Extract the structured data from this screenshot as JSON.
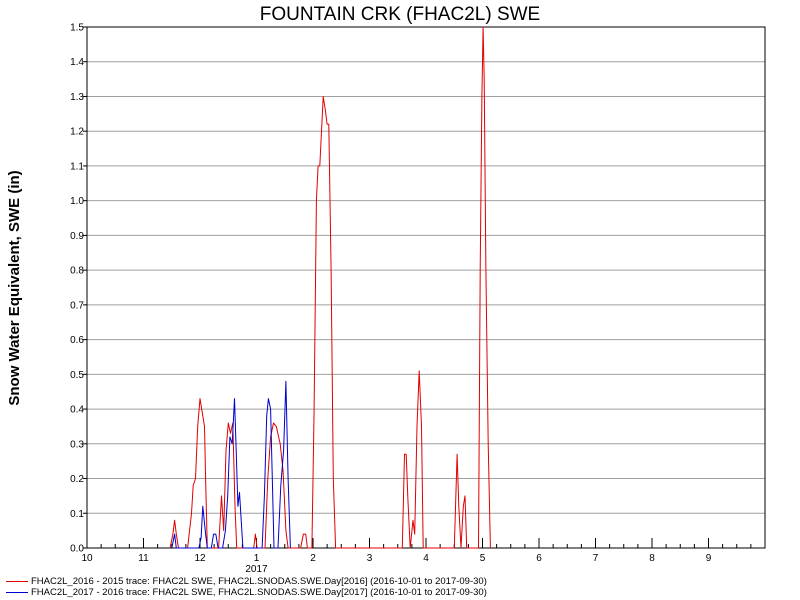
{
  "chart_data": {
    "type": "line",
    "title": "FOUNTAIN CRK (FHAC2L) SWE",
    "xlabel": "",
    "ylabel": "Snow Water Equivalent, SWE (in)",
    "ylim": [
      0,
      1.5
    ],
    "yticks": [
      "0.0",
      "0.1",
      "0.2",
      "0.3",
      "0.4",
      "0.5",
      "0.6",
      "0.7",
      "0.8",
      "0.9",
      "1.0",
      "1.1",
      "1.2",
      "1.3",
      "1.4",
      "1.5"
    ],
    "xlim": [
      10,
      22
    ],
    "xticks": [
      {
        "x": 10,
        "label": "10"
      },
      {
        "x": 11,
        "label": "11"
      },
      {
        "x": 12,
        "label": "12"
      },
      {
        "x": 13,
        "label": "1"
      },
      {
        "x": 14,
        "label": "2"
      },
      {
        "x": 15,
        "label": "3"
      },
      {
        "x": 16,
        "label": "4"
      },
      {
        "x": 17,
        "label": "5"
      },
      {
        "x": 18,
        "label": "6"
      },
      {
        "x": 19,
        "label": "7"
      },
      {
        "x": 20,
        "label": "8"
      },
      {
        "x": 21,
        "label": "9"
      }
    ],
    "year_label": {
      "x": 13,
      "label": "2017"
    },
    "grid": true,
    "series": [
      {
        "name": "FHAC2L_2016 - 2015 trace: FHAC2L SWE, FHAC2L.SNODAS.SWE.Day[2016] (2016-10-01 to 2017-09-30)",
        "color": "#e00000",
        "points": [
          [
            11.47,
            0
          ],
          [
            11.52,
            0.04
          ],
          [
            11.55,
            0.08
          ],
          [
            11.58,
            0.04
          ],
          [
            11.62,
            0
          ],
          [
            11.78,
            0
          ],
          [
            11.85,
            0.1
          ],
          [
            11.88,
            0.18
          ],
          [
            11.92,
            0.2
          ],
          [
            11.96,
            0.35
          ],
          [
            12.0,
            0.43
          ],
          [
            12.05,
            0.38
          ],
          [
            12.08,
            0.35
          ],
          [
            12.1,
            0.2
          ],
          [
            12.13,
            0
          ],
          [
            12.33,
            0
          ],
          [
            12.38,
            0.15
          ],
          [
            12.42,
            0.05
          ],
          [
            12.46,
            0.28
          ],
          [
            12.5,
            0.36
          ],
          [
            12.54,
            0.33
          ],
          [
            12.58,
            0.36
          ],
          [
            12.62,
            0.12
          ],
          [
            12.65,
            0
          ],
          [
            12.95,
            0
          ],
          [
            12.98,
            0.04
          ],
          [
            13.01,
            0
          ],
          [
            13.15,
            0
          ],
          [
            13.2,
            0.2
          ],
          [
            13.25,
            0.32
          ],
          [
            13.3,
            0.36
          ],
          [
            13.35,
            0.35
          ],
          [
            13.42,
            0.3
          ],
          [
            13.47,
            0.22
          ],
          [
            13.52,
            0.05
          ],
          [
            13.56,
            0
          ],
          [
            13.78,
            0
          ],
          [
            13.83,
            0.04
          ],
          [
            13.87,
            0.04
          ],
          [
            13.9,
            0
          ],
          [
            13.98,
            0
          ],
          [
            14.02,
            0.4
          ],
          [
            14.06,
            1.0
          ],
          [
            14.09,
            1.1
          ],
          [
            14.12,
            1.1
          ],
          [
            14.15,
            1.2
          ],
          [
            14.18,
            1.3
          ],
          [
            14.22,
            1.26
          ],
          [
            14.25,
            1.22
          ],
          [
            14.28,
            1.22
          ],
          [
            14.32,
            0.8
          ],
          [
            14.36,
            0.2
          ],
          [
            14.4,
            0
          ],
          [
            15.58,
            0
          ],
          [
            15.62,
            0.27
          ],
          [
            15.65,
            0.27
          ],
          [
            15.68,
            0.14
          ],
          [
            15.72,
            0
          ],
          [
            15.77,
            0.08
          ],
          [
            15.8,
            0.04
          ],
          [
            15.84,
            0.35
          ],
          [
            15.88,
            0.51
          ],
          [
            15.92,
            0.35
          ],
          [
            15.95,
            0
          ],
          [
            16.5,
            0
          ],
          [
            16.55,
            0.27
          ],
          [
            16.58,
            0.12
          ],
          [
            16.62,
            0
          ],
          [
            16.66,
            0.12
          ],
          [
            16.69,
            0.15
          ],
          [
            16.72,
            0
          ],
          [
            16.93,
            0
          ],
          [
            16.96,
            0.8
          ],
          [
            16.99,
            1.3
          ],
          [
            17.01,
            1.5
          ],
          [
            17.03,
            1.35
          ],
          [
            17.06,
            0.8
          ],
          [
            17.1,
            0.3
          ],
          [
            17.14,
            0
          ]
        ]
      },
      {
        "name": "FHAC2L_2017 - 2016 trace: FHAC2L SWE, FHAC2L.SNODAS.SWE.Day[2017] (2016-10-01 to 2017-09-30)",
        "color": "#0000cc",
        "points": [
          [
            11.5,
            0
          ],
          [
            11.55,
            0.04
          ],
          [
            11.58,
            0
          ],
          [
            11.98,
            0
          ],
          [
            12.02,
            0.03
          ],
          [
            12.05,
            0.12
          ],
          [
            12.1,
            0.04
          ],
          [
            12.13,
            0
          ],
          [
            12.2,
            0
          ],
          [
            12.24,
            0.04
          ],
          [
            12.28,
            0.04
          ],
          [
            12.32,
            0
          ],
          [
            12.4,
            0
          ],
          [
            12.45,
            0.05
          ],
          [
            12.49,
            0.15
          ],
          [
            12.53,
            0.32
          ],
          [
            12.57,
            0.3
          ],
          [
            12.61,
            0.43
          ],
          [
            12.64,
            0.28
          ],
          [
            12.67,
            0.12
          ],
          [
            12.7,
            0.16
          ],
          [
            12.73,
            0.08
          ],
          [
            12.76,
            0
          ],
          [
            13.1,
            0
          ],
          [
            13.14,
            0.15
          ],
          [
            13.18,
            0.38
          ],
          [
            13.21,
            0.43
          ],
          [
            13.25,
            0.4
          ],
          [
            13.28,
            0.2
          ],
          [
            13.31,
            0
          ],
          [
            13.38,
            0
          ],
          [
            13.43,
            0.18
          ],
          [
            13.48,
            0.28
          ],
          [
            13.52,
            0.48
          ],
          [
            13.56,
            0.2
          ],
          [
            13.6,
            0
          ]
        ]
      }
    ]
  },
  "legend": [
    {
      "label": "FHAC2L_2016 - 2015 trace: FHAC2L SWE, FHAC2L.SNODAS.SWE.Day[2016] (2016-10-01 to 2017-09-30)",
      "color": "#e00000"
    },
    {
      "label": "FHAC2L_2017 - 2016 trace: FHAC2L SWE, FHAC2L.SNODAS.SWE.Day[2017] (2016-10-01 to 2017-09-30)",
      "color": "#0000cc"
    }
  ]
}
